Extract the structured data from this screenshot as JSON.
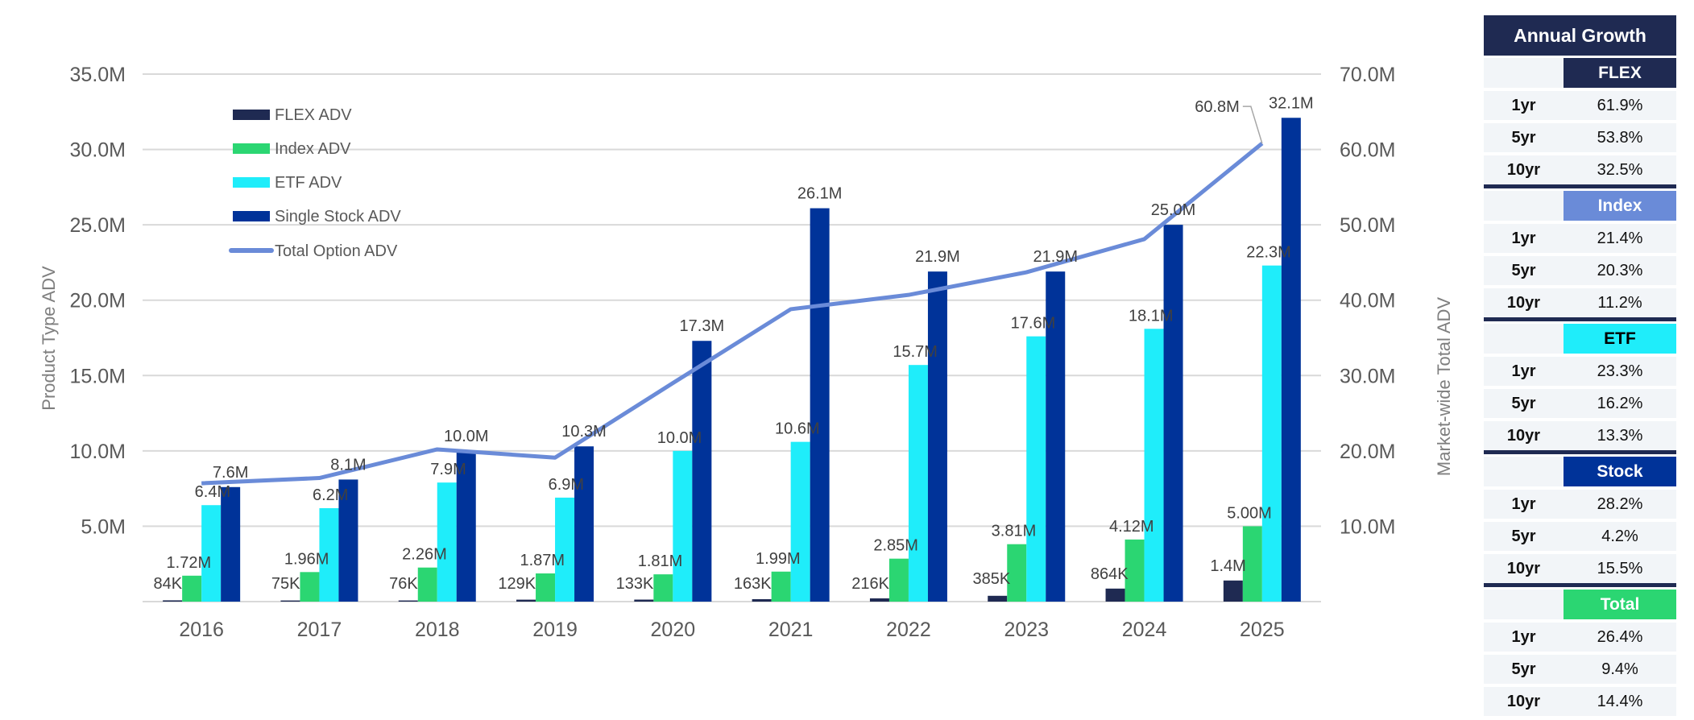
{
  "colors": {
    "flex": "#1f2a52",
    "index": "#2bd672",
    "etf": "#1fedfa",
    "stock": "#003399",
    "total_line": "#6a8bd8",
    "gridline": "#d9d9d9",
    "index_header": "#6a8bd8",
    "total_header": "#2bd672"
  },
  "chart_data": {
    "type": "bar",
    "title": "",
    "categories": [
      "2016",
      "2017",
      "2018",
      "2019",
      "2020",
      "2021",
      "2022",
      "2023",
      "2024",
      "2025"
    ],
    "ylabel": "Product Type ADV",
    "y2label": "Market-wide Total ADV",
    "ylim": [
      0,
      35000000
    ],
    "y2lim": [
      0,
      70000000
    ],
    "yticks": [
      "5.0M",
      "10.0M",
      "15.0M",
      "20.0M",
      "25.0M",
      "30.0M",
      "35.0M"
    ],
    "y2ticks": [
      "10.0M",
      "20.0M",
      "30.0M",
      "40.0M",
      "50.0M",
      "60.0M",
      "70.0M"
    ],
    "grid": true,
    "legend_position": "top-left",
    "series": [
      {
        "name": "FLEX ADV",
        "type": "bar",
        "axis": "left",
        "values": [
          84000,
          75000,
          76000,
          129000,
          133000,
          163000,
          216000,
          385000,
          864000,
          1400000
        ],
        "labels": [
          "84K",
          "75K",
          "76K",
          "129K",
          "133K",
          "163K",
          "216K",
          "385K",
          "864K",
          "1.4M"
        ]
      },
      {
        "name": "Index ADV",
        "type": "bar",
        "axis": "left",
        "values": [
          1720000,
          1960000,
          2260000,
          1870000,
          1810000,
          1990000,
          2850000,
          3810000,
          4120000,
          5000000
        ],
        "labels": [
          "1.72M",
          "1.96M",
          "2.26M",
          "1.87M",
          "1.81M",
          "1.99M",
          "2.85M",
          "3.81M",
          "4.12M",
          "5.00M"
        ]
      },
      {
        "name": "ETF ADV",
        "type": "bar",
        "axis": "left",
        "values": [
          6400000,
          6200000,
          7900000,
          6900000,
          10000000,
          10600000,
          15700000,
          17600000,
          18100000,
          22300000
        ],
        "labels": [
          "6.4M",
          "6.2M",
          "7.9M",
          "6.9M",
          "10.0M",
          "10.6M",
          "15.7M",
          "17.6M",
          "18.1M",
          "22.3M"
        ]
      },
      {
        "name": "Single Stock ADV",
        "type": "bar",
        "axis": "left",
        "values": [
          7600000,
          8100000,
          10000000,
          10300000,
          17300000,
          26100000,
          21900000,
          21900000,
          25000000,
          32100000
        ],
        "labels": [
          "7.6M",
          "8.1M",
          "10.0M",
          "10.3M",
          "17.3M",
          "26.1M",
          "21.9M",
          "21.9M",
          "25.0M",
          "32.1M"
        ]
      },
      {
        "name": "Total Option ADV",
        "type": "line",
        "axis": "right",
        "values": [
          15700000,
          16400000,
          20200000,
          19100000,
          29000000,
          38800000,
          40700000,
          43700000,
          48100000,
          60800000
        ],
        "labels": [
          "",
          "",
          "",
          "",
          "",
          "",
          "",
          "",
          "",
          "60.8M"
        ]
      }
    ]
  },
  "growth_table": {
    "title": "Annual Growth",
    "blocks": [
      {
        "category": "FLEX",
        "color": "#1f2a52",
        "text_color": "#ffffff",
        "rows": [
          {
            "period": "1yr",
            "value": "61.9%"
          },
          {
            "period": "5yr",
            "value": "53.8%"
          },
          {
            "period": "10yr",
            "value": "32.5%"
          }
        ]
      },
      {
        "category": "Index",
        "color": "#6a8bd8",
        "text_color": "#ffffff",
        "rows": [
          {
            "period": "1yr",
            "value": "21.4%"
          },
          {
            "period": "5yr",
            "value": "20.3%"
          },
          {
            "period": "10yr",
            "value": "11.2%"
          }
        ]
      },
      {
        "category": "ETF",
        "color": "#1fedfa",
        "text_color": "#000000",
        "rows": [
          {
            "period": "1yr",
            "value": "23.3%"
          },
          {
            "period": "5yr",
            "value": "16.2%"
          },
          {
            "period": "10yr",
            "value": "13.3%"
          }
        ]
      },
      {
        "category": "Stock",
        "color": "#003399",
        "text_color": "#ffffff",
        "rows": [
          {
            "period": "1yr",
            "value": "28.2%"
          },
          {
            "period": "5yr",
            "value": "4.2%"
          },
          {
            "period": "10yr",
            "value": "15.5%"
          }
        ]
      },
      {
        "category": "Total",
        "color": "#2bd672",
        "text_color": "#ffffff",
        "rows": [
          {
            "period": "1yr",
            "value": "26.4%"
          },
          {
            "period": "5yr",
            "value": "9.4%"
          },
          {
            "period": "10yr",
            "value": "14.4%"
          }
        ]
      }
    ]
  }
}
